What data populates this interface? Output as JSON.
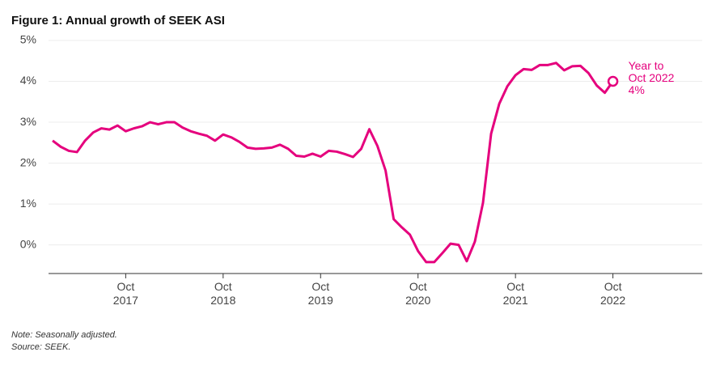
{
  "chart_data": {
    "type": "line",
    "title": "Figure 1: Annual growth of SEEK ASI",
    "notes": [
      "Note: Seasonally adjusted.",
      "Source: SEEK."
    ],
    "annotation": [
      "Year to",
      "Oct 2022"
    ],
    "highlight_label": "4%",
    "x": [
      "2017-01",
      "2017-02",
      "2017-03",
      "2017-04",
      "2017-05",
      "2017-06",
      "2017-07",
      "2017-08",
      "2017-09",
      "2017-10",
      "2017-11",
      "2017-12",
      "2018-01",
      "2018-02",
      "2018-03",
      "2018-04",
      "2018-05",
      "2018-06",
      "2018-07",
      "2018-08",
      "2018-09",
      "2018-10",
      "2018-11",
      "2018-12",
      "2019-01",
      "2019-02",
      "2019-03",
      "2019-04",
      "2019-05",
      "2019-06",
      "2019-07",
      "2019-08",
      "2019-09",
      "2019-10",
      "2019-11",
      "2019-12",
      "2020-01",
      "2020-02",
      "2020-03",
      "2020-04",
      "2020-05",
      "2020-06",
      "2020-07",
      "2020-08",
      "2020-09",
      "2020-10",
      "2020-11",
      "2020-12",
      "2021-01",
      "2021-02",
      "2021-03",
      "2021-04",
      "2021-05",
      "2021-06",
      "2021-07",
      "2021-08",
      "2021-09",
      "2021-10",
      "2021-11",
      "2021-12",
      "2022-01",
      "2022-02",
      "2022-03",
      "2022-04",
      "2022-05",
      "2022-06",
      "2022-07",
      "2022-08",
      "2022-09",
      "2022-10"
    ],
    "series": [
      {
        "name": "Annual growth",
        "color": "#e5007d",
        "values": [
          2.55,
          2.4,
          2.3,
          2.27,
          2.55,
          2.75,
          2.85,
          2.82,
          2.92,
          2.78,
          2.85,
          2.9,
          3.0,
          2.95,
          3.0,
          3.0,
          2.87,
          2.78,
          2.72,
          2.67,
          2.55,
          2.7,
          2.63,
          2.52,
          2.38,
          2.35,
          2.36,
          2.38,
          2.45,
          2.35,
          2.18,
          2.16,
          2.23,
          2.16,
          2.3,
          2.28,
          2.22,
          2.15,
          2.35,
          2.83,
          2.42,
          1.82,
          0.63,
          0.43,
          0.25,
          -0.15,
          -0.42,
          -0.42,
          -0.2,
          0.03,
          0.0,
          -0.4,
          0.08,
          1.03,
          2.72,
          3.45,
          3.88,
          4.15,
          4.3,
          4.28,
          4.4,
          4.4,
          4.45,
          4.27,
          4.37,
          4.38,
          4.2,
          3.9,
          3.72,
          4.0
        ]
      }
    ],
    "xlim": [
      "2016-12",
      "2023-09"
    ],
    "xticks": [
      {
        "value": "2017-10",
        "label": "Oct 2017"
      },
      {
        "value": "2018-10",
        "label": "Oct 2018"
      },
      {
        "value": "2019-10",
        "label": "Oct 2019"
      },
      {
        "value": "2020-10",
        "label": "Oct 2020"
      },
      {
        "value": "2021-10",
        "label": "Oct 2021"
      },
      {
        "value": "2022-10",
        "label": "Oct 2022"
      }
    ],
    "ylim": [
      -0.7,
      5
    ],
    "yticks": [
      {
        "value": 0,
        "label": "0%"
      },
      {
        "value": 1,
        "label": "1%"
      },
      {
        "value": 2,
        "label": "2%"
      },
      {
        "value": 3,
        "label": "3%"
      },
      {
        "value": 4,
        "label": "4%"
      },
      {
        "value": 5,
        "label": "5%"
      }
    ],
    "grid": true
  }
}
